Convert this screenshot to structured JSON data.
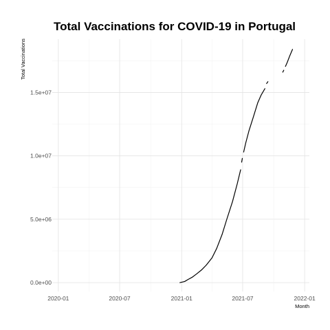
{
  "chart_data": {
    "type": "line",
    "title": "Total Vaccinations for COVID-19 in Portugal",
    "xlabel": "Month",
    "ylabel": "Total Vaccinations",
    "x_type": "date",
    "xlim": [
      "2019-12-14",
      "2022-01-15"
    ],
    "ylim": [
      -700000,
      19200000
    ],
    "x_ticks": [
      {
        "value": "2020-01-01",
        "label": "2020-01"
      },
      {
        "value": "2020-07-01",
        "label": "2020-07"
      },
      {
        "value": "2021-01-01",
        "label": "2021-01"
      },
      {
        "value": "2021-07-01",
        "label": "2021-07"
      },
      {
        "value": "2022-01-01",
        "label": "2022-01"
      }
    ],
    "y_ticks": [
      {
        "value": 0,
        "label": "0.0e+00"
      },
      {
        "value": 5000000,
        "label": "5.0e+06"
      },
      {
        "value": 10000000,
        "label": "1.0e+07"
      },
      {
        "value": 15000000,
        "label": "1.5e+07"
      }
    ],
    "grid": true,
    "legend": "none",
    "series": [
      {
        "color": "#000000",
        "segments": [
          [
            {
              "x": "2020-12-27",
              "y": 0
            },
            {
              "x": "2021-01-10",
              "y": 90000
            },
            {
              "x": "2021-01-20",
              "y": 250000
            },
            {
              "x": "2021-02-01",
              "y": 420000
            },
            {
              "x": "2021-02-15",
              "y": 700000
            },
            {
              "x": "2021-03-01",
              "y": 1000000
            },
            {
              "x": "2021-03-15",
              "y": 1380000
            },
            {
              "x": "2021-04-01",
              "y": 1950000
            },
            {
              "x": "2021-04-15",
              "y": 2700000
            },
            {
              "x": "2021-05-01",
              "y": 3800000
            },
            {
              "x": "2021-05-15",
              "y": 5000000
            },
            {
              "x": "2021-06-01",
              "y": 6400000
            },
            {
              "x": "2021-06-15",
              "y": 7800000
            },
            {
              "x": "2021-06-25",
              "y": 8900000
            }
          ],
          [
            {
              "x": "2021-06-28",
              "y": 9500000
            },
            {
              "x": "2021-06-30",
              "y": 9800000
            }
          ],
          [
            {
              "x": "2021-07-04",
              "y": 10300000
            },
            {
              "x": "2021-07-10",
              "y": 11000000
            },
            {
              "x": "2021-07-20",
              "y": 12000000
            },
            {
              "x": "2021-08-01",
              "y": 13000000
            },
            {
              "x": "2021-08-15",
              "y": 14200000
            },
            {
              "x": "2021-08-25",
              "y": 14800000
            },
            {
              "x": "2021-09-05",
              "y": 15300000
            }
          ],
          [
            {
              "x": "2021-09-10",
              "y": 15700000
            },
            {
              "x": "2021-09-14",
              "y": 15850000
            }
          ],
          [
            {
              "x": "2021-10-28",
              "y": 16600000
            },
            {
              "x": "2021-10-31",
              "y": 16750000
            }
          ],
          [
            {
              "x": "2021-11-05",
              "y": 17050000
            },
            {
              "x": "2021-11-10",
              "y": 17350000
            },
            {
              "x": "2021-11-18",
              "y": 17900000
            },
            {
              "x": "2021-11-26",
              "y": 18400000
            }
          ]
        ]
      }
    ]
  }
}
